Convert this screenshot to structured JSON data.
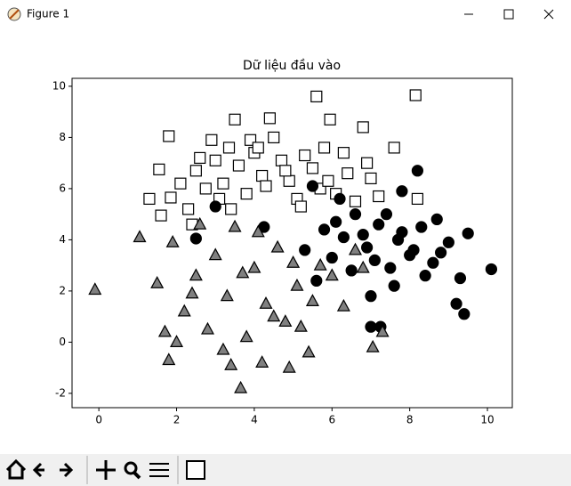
{
  "window": {
    "title": "Figure 1"
  },
  "chart_data": {
    "type": "scatter",
    "title": "Dữ liệu đầu vào",
    "xlim": [
      -0.69,
      10.64
    ],
    "ylim": [
      -2.56,
      10.31
    ],
    "xticks": [
      0,
      2,
      4,
      6,
      8,
      10
    ],
    "yticks": [
      -2,
      0,
      2,
      4,
      6,
      8,
      10
    ],
    "series": [
      {
        "marker": "s",
        "color": "#ffffff",
        "edgecolor": "#000000",
        "x": [
          5.6,
          8.15,
          1.8,
          1.55,
          1.3,
          1.6,
          3.5,
          4.4,
          5.95,
          6.8,
          7.6,
          2.9,
          1.85,
          2.3,
          2.5,
          2.75,
          3.0,
          3.2,
          3.35,
          3.6,
          3.8,
          4.0,
          4.2,
          4.5,
          4.7,
          4.9,
          5.1,
          5.3,
          5.5,
          5.8,
          6.1,
          6.4,
          6.9,
          7.2,
          8.2,
          2.1,
          2.6,
          3.1,
          3.9,
          4.3,
          4.8,
          5.2,
          5.7,
          6.3,
          7.0,
          3.4,
          2.4,
          5.9,
          4.1,
          6.6
        ],
        "values": [
          9.6,
          9.65,
          8.05,
          6.75,
          5.6,
          4.95,
          8.7,
          8.75,
          8.7,
          8.4,
          7.6,
          7.9,
          5.65,
          5.2,
          6.7,
          6.0,
          7.1,
          6.2,
          7.6,
          6.9,
          5.8,
          7.4,
          6.5,
          8.0,
          7.1,
          6.3,
          5.6,
          7.3,
          6.8,
          7.6,
          5.8,
          6.6,
          7.0,
          5.7,
          5.6,
          6.2,
          7.2,
          5.6,
          7.9,
          6.1,
          6.7,
          5.3,
          6.0,
          7.4,
          6.4,
          5.2,
          4.6,
          6.3,
          7.6,
          5.5
        ]
      },
      {
        "marker": "o",
        "color": "#000000",
        "edgecolor": "#000000",
        "x": [
          10.1,
          9.5,
          9.4,
          9.2,
          7.0,
          7.25,
          8.2,
          7.8,
          2.5,
          3.0,
          4.25,
          5.5,
          6.0,
          6.3,
          6.6,
          6.9,
          7.2,
          7.5,
          7.8,
          8.1,
          8.4,
          8.7,
          9.0,
          9.3,
          5.8,
          6.2,
          6.5,
          6.8,
          7.1,
          7.4,
          7.7,
          8.0,
          8.3,
          8.6,
          5.3,
          5.6,
          6.1,
          7.0,
          7.6,
          8.8
        ],
        "values": [
          2.85,
          4.25,
          1.1,
          1.5,
          0.6,
          0.6,
          6.7,
          5.9,
          4.05,
          5.3,
          4.5,
          6.1,
          3.3,
          4.1,
          5.0,
          3.7,
          4.6,
          2.9,
          4.3,
          3.6,
          2.6,
          4.8,
          3.9,
          2.5,
          4.4,
          5.6,
          2.8,
          4.2,
          3.2,
          5.0,
          4.0,
          3.4,
          4.5,
          3.1,
          3.6,
          2.4,
          4.7,
          1.8,
          2.2,
          3.5
        ]
      },
      {
        "marker": "^",
        "color": "#808080",
        "edgecolor": "#000000",
        "x": [
          -0.1,
          1.05,
          3.65,
          1.8,
          4.9,
          7.05,
          7.3,
          1.5,
          1.9,
          2.2,
          2.5,
          2.8,
          3.0,
          3.3,
          3.5,
          3.8,
          4.0,
          4.3,
          4.6,
          4.8,
          5.1,
          5.4,
          5.7,
          6.0,
          6.3,
          6.6,
          2.0,
          2.6,
          3.2,
          3.7,
          4.2,
          4.5,
          5.0,
          5.5,
          1.7,
          2.4,
          3.4,
          4.1,
          5.2,
          6.8
        ],
        "values": [
          2.05,
          4.1,
          -1.8,
          -0.7,
          -1.0,
          -0.2,
          0.4,
          2.3,
          3.9,
          1.2,
          2.6,
          0.5,
          3.4,
          1.8,
          4.5,
          0.2,
          2.9,
          1.5,
          3.7,
          0.8,
          2.2,
          -0.4,
          3.0,
          2.6,
          1.4,
          3.6,
          0.0,
          4.6,
          -0.3,
          2.7,
          -0.8,
          1.0,
          3.1,
          1.6,
          0.4,
          1.9,
          -0.9,
          4.3,
          0.6,
          2.9
        ]
      }
    ]
  }
}
